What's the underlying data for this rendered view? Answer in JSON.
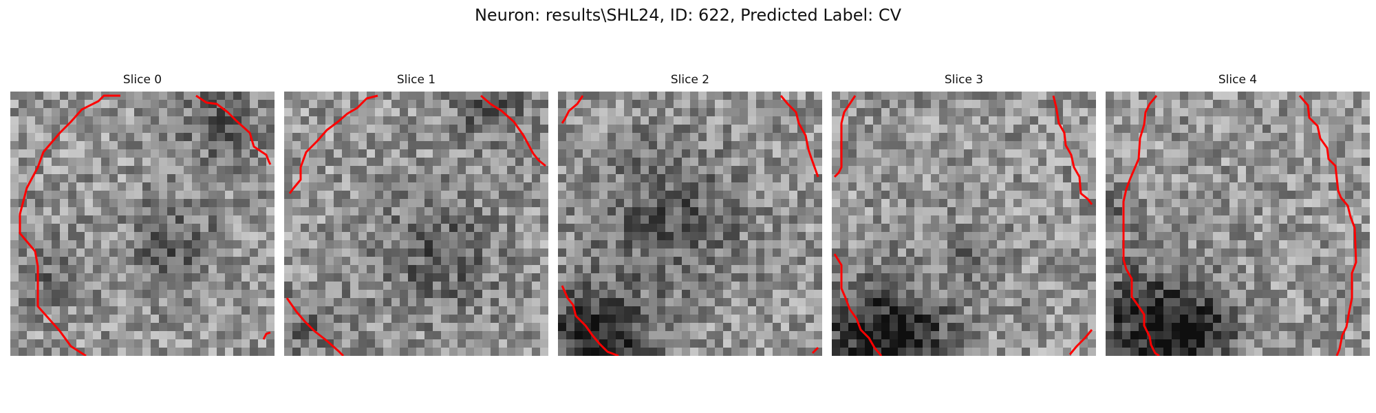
{
  "figure": {
    "title": "Neuron: results\\SHL24, ID: 622, Predicted Label: CV"
  },
  "panels": [
    {
      "title": "Slice 0",
      "seed": 11,
      "dark": [
        [
          0.62,
          0.58,
          0.12,
          -55
        ],
        [
          0.15,
          0.68,
          0.1,
          -40
        ],
        [
          0.8,
          0.12,
          0.12,
          -50
        ]
      ]
    },
    {
      "title": "Slice 1",
      "seed": 23,
      "dark": [
        [
          0.58,
          0.62,
          0.16,
          -55
        ],
        [
          0.1,
          0.9,
          0.1,
          -45
        ],
        [
          0.78,
          0.05,
          0.1,
          -60
        ]
      ]
    },
    {
      "title": "Slice 2",
      "seed": 37,
      "dark": [
        [
          0.42,
          0.48,
          0.2,
          -60
        ],
        [
          0.08,
          0.9,
          0.14,
          -80
        ],
        [
          0.22,
          0.96,
          0.1,
          -70
        ]
      ]
    },
    {
      "title": "Slice 3",
      "seed": 49,
      "dark": [
        [
          0.12,
          0.92,
          0.16,
          -90
        ],
        [
          0.3,
          0.95,
          0.12,
          -80
        ],
        [
          0.5,
          0.62,
          0.1,
          -30
        ]
      ]
    },
    {
      "title": "Slice 4",
      "seed": 61,
      "dark": [
        [
          0.15,
          0.88,
          0.16,
          -90
        ],
        [
          0.32,
          0.92,
          0.12,
          -85
        ],
        [
          0.05,
          0.45,
          0.06,
          -40
        ]
      ]
    }
  ],
  "colors": {
    "contour": "#ff0000"
  }
}
